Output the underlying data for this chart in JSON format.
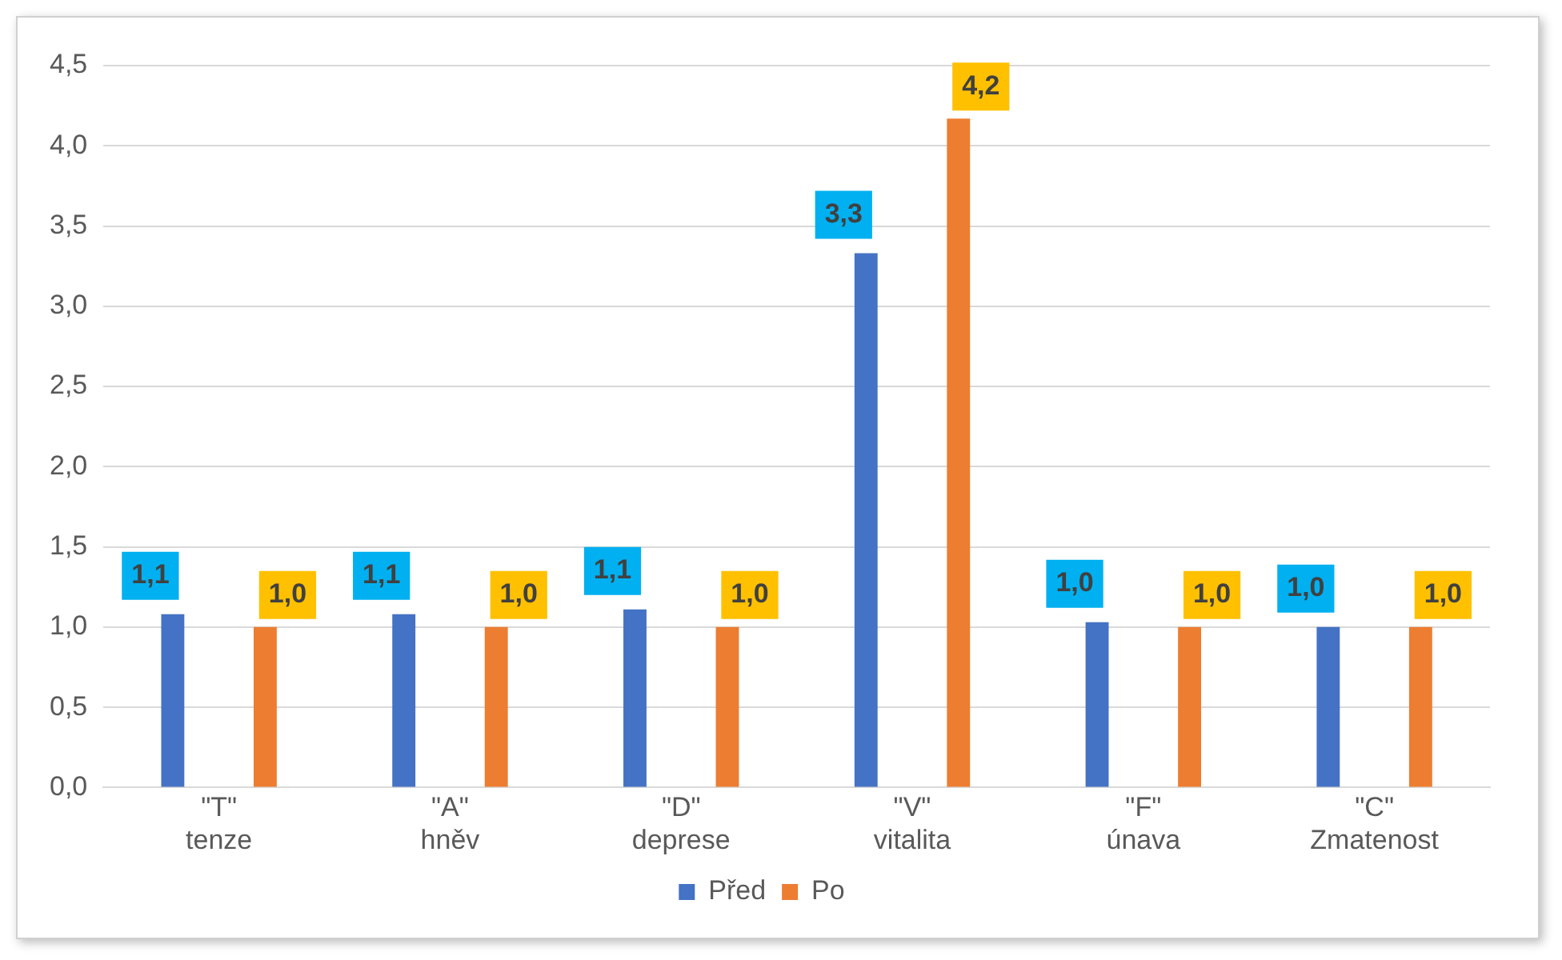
{
  "chart_data": {
    "type": "bar",
    "categories": [
      "\"T\"\ntenze",
      "\"A\"\nhněv",
      "\"D\"\ndeprese",
      "\"V\"\nvitalita",
      "\"F\"\núnava",
      "\"C\"\nZmatenost"
    ],
    "series": [
      {
        "name": "Před",
        "color": "#4472c4",
        "values": [
          1.08,
          1.08,
          1.11,
          3.33,
          1.03,
          1.0
        ],
        "value_labels": [
          "1,1",
          "1,1",
          "1,1",
          "3,3",
          "1,0",
          "1,0"
        ]
      },
      {
        "name": "Po",
        "color": "#ed7d31",
        "values": [
          1.0,
          1.0,
          1.0,
          4.17,
          1.0,
          1.0
        ],
        "value_labels": [
          "1,0",
          "1,0",
          "1,0",
          "4,2",
          "1,0",
          "1,0"
        ]
      }
    ],
    "ylim": [
      0,
      4.5
    ],
    "yticks": [
      {
        "value": 0,
        "label": "0,0"
      },
      {
        "value": 0.5,
        "label": "0,5"
      },
      {
        "value": 1,
        "label": "1,0"
      },
      {
        "value": 1.5,
        "label": "1,5"
      },
      {
        "value": 2,
        "label": "2,0"
      },
      {
        "value": 2.5,
        "label": "2,5"
      },
      {
        "value": 3,
        "label": "3,0"
      },
      {
        "value": 3.5,
        "label": "3,5"
      },
      {
        "value": 4,
        "label": "4,0"
      },
      {
        "value": 4.5,
        "label": "4,5"
      }
    ],
    "grid": "y",
    "legend": "bottom"
  }
}
